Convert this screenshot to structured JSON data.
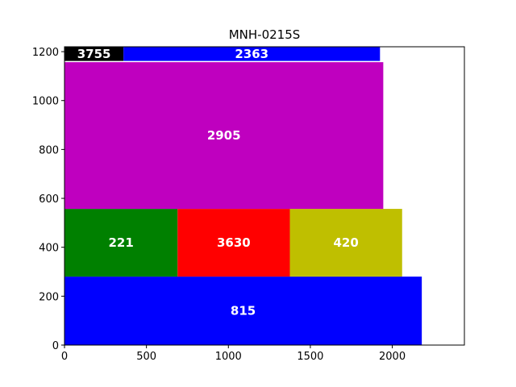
{
  "chart_data": {
    "type": "bar",
    "title": "MNH-0215S",
    "xlabel": "",
    "ylabel": "",
    "xlim": [
      0,
      2440
    ],
    "ylim": [
      0,
      1220
    ],
    "xticks": [
      0,
      500,
      1000,
      1500,
      2000
    ],
    "yticks": [
      0,
      200,
      400,
      600,
      800,
      1000,
      1200
    ],
    "grid": false,
    "rectangles": [
      {
        "label": "815",
        "x": 0,
        "y": 0,
        "width": 2180,
        "height": 280,
        "color": "#0000ff"
      },
      {
        "label": "221",
        "x": 0,
        "y": 280,
        "width": 690,
        "height": 277,
        "color": "#008000"
      },
      {
        "label": "3630",
        "x": 690,
        "y": 280,
        "width": 685,
        "height": 277,
        "color": "#ff0000"
      },
      {
        "label": "420",
        "x": 1375,
        "y": 280,
        "width": 685,
        "height": 277,
        "color": "#bfbf00"
      },
      {
        "label": "2905",
        "x": 0,
        "y": 557,
        "width": 1945,
        "height": 600,
        "color": "#bf00bf"
      },
      {
        "label": "3755",
        "x": 0,
        "y": 1162,
        "width": 360,
        "height": 58,
        "color": "#000000"
      },
      {
        "label": "2363",
        "x": 360,
        "y": 1162,
        "width": 1565,
        "height": 58,
        "color": "#0000ff"
      }
    ]
  }
}
